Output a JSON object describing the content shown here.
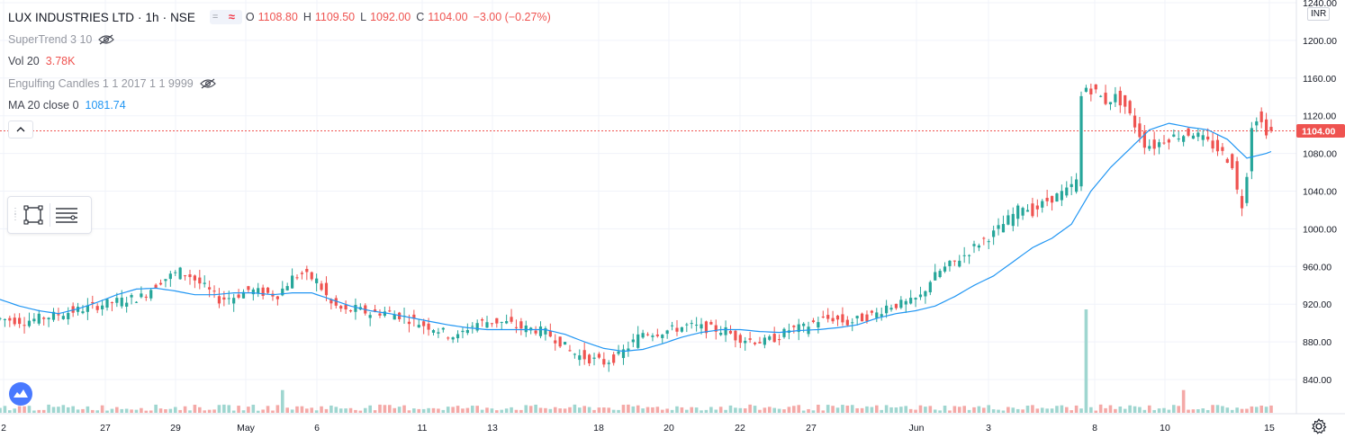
{
  "header": {
    "symbol": "LUX INDUSTRIES LTD",
    "sep1": "·",
    "interval": "1h",
    "sep2": "·",
    "exchange": "NSE",
    "ohlc": {
      "o_label": "O",
      "o": "1108.80",
      "h_label": "H",
      "h": "1109.50",
      "l_label": "L",
      "l": "1092.00",
      "c_label": "C",
      "c": "1104.00",
      "change": "−3.00 (−0.27%)"
    }
  },
  "indicators": [
    {
      "name": "SuperTrend 3 10",
      "value": "",
      "hidden": true
    },
    {
      "name": "Vol 20",
      "value": "3.78K",
      "value_color": "#ef5350"
    },
    {
      "name": "Engulfing Candles 1 1 2017 1 1 9999",
      "value": "",
      "hidden": true
    },
    {
      "name": "MA 20 close 0",
      "value": "1081.74",
      "value_color": "#2196f3"
    }
  ],
  "price_axis": {
    "currency": "INR",
    "ticks": [
      "1240.00",
      "1200.00",
      "1160.00",
      "1120.00",
      "1080.00",
      "1040.00",
      "1000.00",
      "960.00",
      "920.00",
      "880.00",
      "840.00"
    ],
    "last_price_label": "1104.00",
    "last_price_color": "#ef5350"
  },
  "time_axis": {
    "ticks": [
      "2",
      "27",
      "29",
      "May",
      "6",
      "11",
      "13",
      "18",
      "20",
      "22",
      "27",
      "Jun",
      "3",
      "8",
      "10",
      "15"
    ]
  },
  "colors": {
    "up": "#26a69a",
    "down": "#ef5350",
    "ma": "#2196f3",
    "vol_up": "#9fd6d0",
    "vol_down": "#f4a9a7",
    "grid": "#f0f3fa"
  },
  "icons": {
    "eye_off": "eye-off-icon",
    "collapse": "chevron-up-icon",
    "drawing_rect": "rectangle-icon",
    "drawing_lines": "horizontal-lines-icon",
    "logo": "tradingview-logo-icon",
    "settings": "gear-icon"
  },
  "chart_data": {
    "type": "candlestick",
    "title": "LUX INDUSTRIES LTD · 1h · NSE",
    "y_range": [
      818,
      1240
    ],
    "x_range": [
      "Apr 22",
      "Jun 15"
    ],
    "last_close": 1104.0,
    "ma20_last": 1081.74,
    "volume_last": "3.78K",
    "price_path": [
      [
        0,
        905
      ],
      [
        6,
        902
      ],
      [
        12,
        908
      ],
      [
        18,
        915
      ],
      [
        24,
        922
      ],
      [
        30,
        928
      ],
      [
        34,
        945
      ],
      [
        38,
        955
      ],
      [
        40,
        950
      ],
      [
        43,
        938
      ],
      [
        46,
        925
      ],
      [
        49,
        928
      ],
      [
        52,
        935
      ],
      [
        55,
        932
      ],
      [
        58,
        930
      ],
      [
        61,
        948
      ],
      [
        63,
        952
      ],
      [
        66,
        945
      ],
      [
        69,
        920
      ],
      [
        72,
        912
      ],
      [
        74,
        915
      ],
      [
        77,
        910
      ],
      [
        80,
        912
      ],
      [
        83,
        908
      ],
      [
        86,
        902
      ],
      [
        88,
        898
      ],
      [
        90,
        895
      ],
      [
        93,
        888
      ],
      [
        95,
        885
      ],
      [
        97,
        895
      ],
      [
        99,
        900
      ],
      [
        102,
        902
      ],
      [
        105,
        900
      ],
      [
        108,
        895
      ],
      [
        111,
        893
      ],
      [
        113,
        890
      ],
      [
        116,
        880
      ],
      [
        118,
        870
      ],
      [
        120,
        865
      ],
      [
        122,
        862
      ],
      [
        125,
        858
      ],
      [
        128,
        865
      ],
      [
        131,
        880
      ],
      [
        133,
        890
      ],
      [
        136,
        890
      ],
      [
        139,
        893
      ],
      [
        142,
        897
      ],
      [
        145,
        895
      ],
      [
        148,
        893
      ],
      [
        150,
        892
      ],
      [
        152,
        885
      ],
      [
        155,
        882
      ],
      [
        158,
        880
      ],
      [
        161,
        886
      ],
      [
        163,
        893
      ],
      [
        166,
        895
      ],
      [
        169,
        903
      ],
      [
        172,
        905
      ],
      [
        175,
        900
      ],
      [
        178,
        905
      ],
      [
        181,
        910
      ],
      [
        183,
        918
      ],
      [
        186,
        920
      ],
      [
        188,
        922
      ],
      [
        190,
        928
      ],
      [
        192,
        945
      ],
      [
        194,
        955
      ],
      [
        197,
        965
      ],
      [
        199,
        972
      ],
      [
        202,
        985
      ],
      [
        205,
        995
      ],
      [
        208,
        1010
      ],
      [
        211,
        1025
      ],
      [
        213,
        1018
      ],
      [
        216,
        1030
      ],
      [
        218,
        1035
      ],
      [
        220,
        1040
      ],
      [
        222,
        1050
      ],
      [
        223,
        1140
      ],
      [
        224,
        1150
      ],
      [
        226,
        1145
      ],
      [
        228,
        1135
      ],
      [
        230,
        1140
      ],
      [
        232,
        1130
      ],
      [
        234,
        1110
      ],
      [
        236,
        1090
      ],
      [
        238,
        1088
      ],
      [
        240,
        1095
      ],
      [
        242,
        1098
      ],
      [
        244,
        1100
      ],
      [
        246,
        1102
      ],
      [
        248,
        1095
      ],
      [
        250,
        1088
      ],
      [
        252,
        1080
      ],
      [
        254,
        1068
      ],
      [
        255,
        1040
      ],
      [
        256,
        1025
      ],
      [
        257,
        1060
      ],
      [
        258,
        1110
      ],
      [
        259,
        1118
      ],
      [
        260,
        1112
      ],
      [
        261,
        1104
      ]
    ],
    "ma_path": [
      [
        0,
        925
      ],
      [
        4,
        918
      ],
      [
        8,
        913
      ],
      [
        12,
        910
      ],
      [
        16,
        915
      ],
      [
        20,
        922
      ],
      [
        24,
        930
      ],
      [
        28,
        936
      ],
      [
        32,
        937
      ],
      [
        36,
        934
      ],
      [
        40,
        930
      ],
      [
        44,
        930
      ],
      [
        48,
        932
      ],
      [
        52,
        932
      ],
      [
        56,
        930
      ],
      [
        60,
        932
      ],
      [
        64,
        932
      ],
      [
        68,
        925
      ],
      [
        72,
        918
      ],
      [
        76,
        913
      ],
      [
        80,
        910
      ],
      [
        84,
        906
      ],
      [
        88,
        902
      ],
      [
        92,
        898
      ],
      [
        96,
        895
      ],
      [
        100,
        893
      ],
      [
        104,
        893
      ],
      [
        108,
        893
      ],
      [
        112,
        893
      ],
      [
        116,
        888
      ],
      [
        120,
        880
      ],
      [
        124,
        873
      ],
      [
        128,
        870
      ],
      [
        132,
        872
      ],
      [
        136,
        878
      ],
      [
        140,
        885
      ],
      [
        144,
        890
      ],
      [
        148,
        893
      ],
      [
        152,
        893
      ],
      [
        156,
        891
      ],
      [
        160,
        890
      ],
      [
        164,
        892
      ],
      [
        168,
        893
      ],
      [
        172,
        895
      ],
      [
        176,
        898
      ],
      [
        180,
        905
      ],
      [
        184,
        910
      ],
      [
        188,
        913
      ],
      [
        192,
        918
      ],
      [
        196,
        928
      ],
      [
        200,
        940
      ],
      [
        204,
        950
      ],
      [
        208,
        965
      ],
      [
        212,
        980
      ],
      [
        216,
        990
      ],
      [
        220,
        1005
      ],
      [
        224,
        1040
      ],
      [
        228,
        1065
      ],
      [
        232,
        1085
      ],
      [
        236,
        1105
      ],
      [
        240,
        1112
      ],
      [
        244,
        1108
      ],
      [
        248,
        1105
      ],
      [
        252,
        1095
      ],
      [
        256,
        1075
      ],
      [
        260,
        1080
      ],
      [
        261,
        1082
      ]
    ],
    "volume_spikes": [
      {
        "date": "Jun 8",
        "relative": 1.0,
        "color": "up"
      },
      {
        "date": "Apr 30",
        "relative": 0.22,
        "color": "up"
      },
      {
        "date": "Jun 10",
        "relative": 0.22,
        "color": "down"
      }
    ]
  }
}
